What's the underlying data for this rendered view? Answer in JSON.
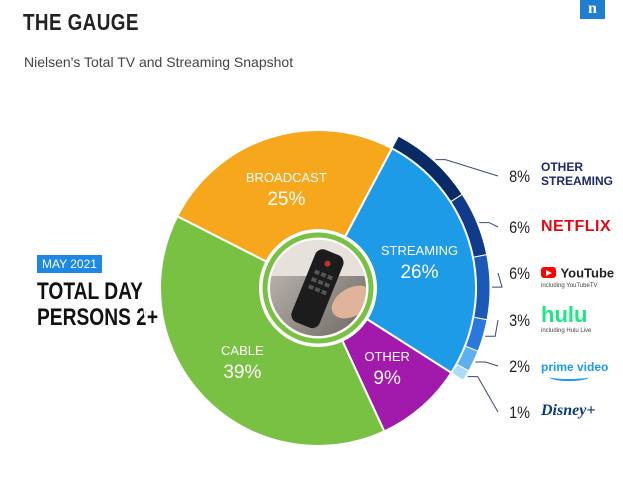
{
  "header": {
    "title": "THE GAUGE",
    "subtitle": "Nielsen's Total TV and Streaming Snapshot",
    "brand_letter": "n"
  },
  "callout": {
    "date": "MAY 2021",
    "line1": "TOTAL DAY",
    "line2": "PERSONS 2+"
  },
  "chart_data": {
    "type": "pie",
    "variant": "donut",
    "title": "THE GAUGE",
    "slices": [
      {
        "name": "BROADCAST",
        "value": 25,
        "label": "25%",
        "color": "#f7a71c"
      },
      {
        "name": "STREAMING",
        "value": 26,
        "label": "26%",
        "color": "#1e9be6"
      },
      {
        "name": "OTHER",
        "value": 9,
        "label": "9%",
        "color": "#a21aab"
      },
      {
        "name": "CABLE",
        "value": 39,
        "label": "39%",
        "color": "#79c143"
      }
    ],
    "streaming_breakdown": [
      {
        "name": "OTHER STREAMING",
        "value": 8,
        "label": "8%",
        "color": "#0a2a66"
      },
      {
        "name": "NETFLIX",
        "value": 6,
        "label": "6%",
        "color": "#123a8a"
      },
      {
        "name": "YouTube",
        "value": 6,
        "label": "6%",
        "color": "#1b58b8"
      },
      {
        "name": "hulu",
        "value": 3,
        "label": "3%",
        "color": "#2a78dc"
      },
      {
        "name": "prime video",
        "value": 2,
        "label": "2%",
        "color": "#5cb0f0"
      },
      {
        "name": "Disney+",
        "value": 1,
        "label": "1%",
        "color": "#a9dcfb"
      }
    ]
  },
  "services": {
    "other_streaming": {
      "line1": "OTHER",
      "line2": "STREAMING"
    },
    "netflix": {
      "word": "NETFLIX"
    },
    "youtube": {
      "word": "YouTube",
      "note": "including YouTubeTV"
    },
    "hulu": {
      "word": "hulu",
      "note": "including Hulu Live"
    },
    "prime": {
      "word": "prime video"
    },
    "disney": {
      "word": "Disney+"
    }
  },
  "colors": {
    "accent": "#1e88e5",
    "ring_outline": "#1f3f84"
  },
  "image": {
    "center_photo": "hand holding tv remote"
  }
}
